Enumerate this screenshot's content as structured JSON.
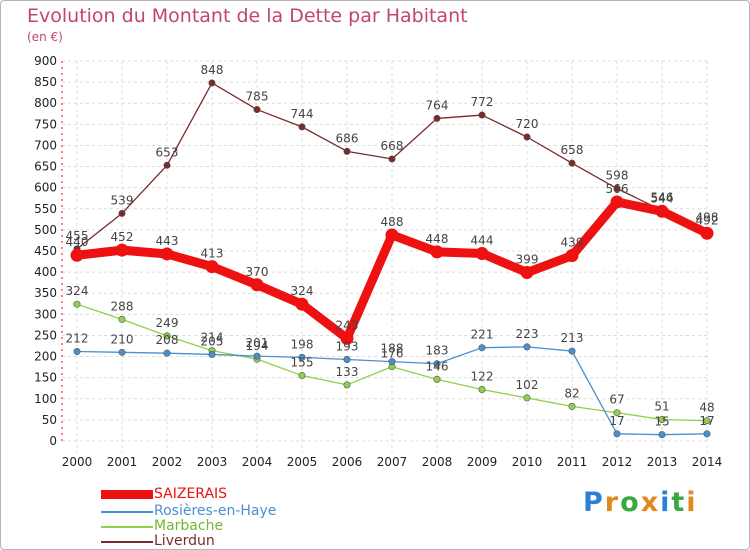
{
  "header": {
    "title": "Evolution du Montant de la Dette par Habitant",
    "subtitle": "(en €)"
  },
  "brand": {
    "letters": [
      "P",
      "r",
      "o",
      "x",
      "i",
      "t",
      "i"
    ],
    "colors": [
      "#2e7fd6",
      "#e08a1e",
      "#3aa842",
      "#e08a1e",
      "#2e7fd6",
      "#3aa842",
      "#e08a1e"
    ]
  },
  "chart_data": {
    "type": "line",
    "title": "Evolution du Montant de la Dette par Habitant",
    "subtitle": "(en €)",
    "x": [
      "2000",
      "2001",
      "2002",
      "2003",
      "2004",
      "2005",
      "2006",
      "2007",
      "2008",
      "2009",
      "2010",
      "2011",
      "2012",
      "2013",
      "2014"
    ],
    "ylim": [
      0,
      900
    ],
    "yticks": [
      0,
      50,
      100,
      150,
      200,
      250,
      300,
      350,
      400,
      450,
      500,
      550,
      600,
      650,
      700,
      750,
      800,
      850,
      900
    ],
    "grid": true,
    "legend_position": "bottom-left",
    "series": [
      {
        "name": "Liverdun",
        "color": "#7a2a2a",
        "style": "thin",
        "values": [
          455,
          539,
          653,
          848,
          785,
          744,
          686,
          668,
          764,
          772,
          720,
          658,
          598,
          546,
          498
        ]
      },
      {
        "name": "Marbache",
        "color": "#8fd24a",
        "style": "thin",
        "values": [
          324,
          288,
          249,
          214,
          194,
          155,
          133,
          176,
          146,
          122,
          102,
          82,
          67,
          51,
          48
        ]
      },
      {
        "name": "Rosières-en-Haye",
        "color": "#4a8fd0",
        "style": "thin",
        "values": [
          212,
          210,
          208,
          205,
          201,
          198,
          193,
          188,
          183,
          221,
          223,
          213,
          17,
          15,
          17
        ]
      },
      {
        "name": "SAIZERAIS",
        "color": "#ee1111",
        "style": "thick",
        "values": [
          440,
          452,
          443,
          413,
          370,
          324,
          243,
          488,
          448,
          444,
          399,
          439,
          566,
          544,
          492
        ]
      }
    ],
    "legend_order": [
      "SAIZERAIS",
      "Rosières-en-Haye",
      "Marbache",
      "Liverdun"
    ]
  }
}
